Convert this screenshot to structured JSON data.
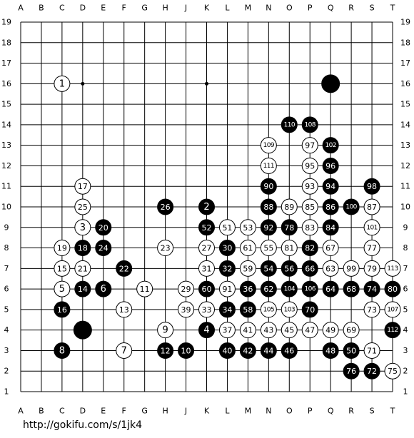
{
  "board": {
    "columns": [
      "A",
      "B",
      "C",
      "D",
      "E",
      "F",
      "G",
      "H",
      "J",
      "K",
      "L",
      "M",
      "N",
      "O",
      "P",
      "Q",
      "R",
      "S",
      "T"
    ],
    "rows": [
      19,
      18,
      17,
      16,
      15,
      14,
      13,
      12,
      11,
      10,
      9,
      8,
      7,
      6,
      5,
      4,
      3,
      2,
      1
    ],
    "stones": [
      {
        "col": "C",
        "row": 16,
        "color": "white",
        "label": "1"
      },
      {
        "col": "Q",
        "row": 16,
        "color": "black"
      },
      {
        "col": "O",
        "row": 14,
        "color": "black",
        "label": "110"
      },
      {
        "col": "P",
        "row": 14,
        "color": "black",
        "label": "108"
      },
      {
        "col": "N",
        "row": 13,
        "color": "white",
        "label": "109"
      },
      {
        "col": "P",
        "row": 13,
        "color": "white",
        "label": "97"
      },
      {
        "col": "Q",
        "row": 13,
        "color": "black",
        "label": "102"
      },
      {
        "col": "N",
        "row": 12,
        "color": "white",
        "label": "111"
      },
      {
        "col": "P",
        "row": 12,
        "color": "white",
        "label": "95"
      },
      {
        "col": "Q",
        "row": 12,
        "color": "black",
        "label": "96"
      },
      {
        "col": "D",
        "row": 11,
        "color": "white",
        "label": "17"
      },
      {
        "col": "N",
        "row": 11,
        "color": "black",
        "label": "90"
      },
      {
        "col": "P",
        "row": 11,
        "color": "white",
        "label": "93"
      },
      {
        "col": "Q",
        "row": 11,
        "color": "black",
        "label": "94"
      },
      {
        "col": "S",
        "row": 11,
        "color": "black",
        "label": "98"
      },
      {
        "col": "D",
        "row": 10,
        "color": "white",
        "label": "25"
      },
      {
        "col": "H",
        "row": 10,
        "color": "black",
        "label": "26"
      },
      {
        "col": "K",
        "row": 10,
        "color": "black",
        "label": "2"
      },
      {
        "col": "N",
        "row": 10,
        "color": "black",
        "label": "88"
      },
      {
        "col": "O",
        "row": 10,
        "color": "white",
        "label": "89"
      },
      {
        "col": "P",
        "row": 10,
        "color": "white",
        "label": "85"
      },
      {
        "col": "Q",
        "row": 10,
        "color": "black",
        "label": "86"
      },
      {
        "col": "R",
        "row": 10,
        "color": "black",
        "label": "100"
      },
      {
        "col": "S",
        "row": 10,
        "color": "white",
        "label": "87"
      },
      {
        "col": "D",
        "row": 9,
        "color": "white",
        "label": "3"
      },
      {
        "col": "E",
        "row": 9,
        "color": "black",
        "label": "20"
      },
      {
        "col": "K",
        "row": 9,
        "color": "black",
        "label": "52"
      },
      {
        "col": "L",
        "row": 9,
        "color": "white",
        "label": "51"
      },
      {
        "col": "M",
        "row": 9,
        "color": "white",
        "label": "53"
      },
      {
        "col": "N",
        "row": 9,
        "color": "black",
        "label": "92"
      },
      {
        "col": "O",
        "row": 9,
        "color": "black",
        "label": "78"
      },
      {
        "col": "P",
        "row": 9,
        "color": "white",
        "label": "83"
      },
      {
        "col": "Q",
        "row": 9,
        "color": "black",
        "label": "84"
      },
      {
        "col": "S",
        "row": 9,
        "color": "white",
        "label": "101"
      },
      {
        "col": "C",
        "row": 8,
        "color": "white",
        "label": "19"
      },
      {
        "col": "D",
        "row": 8,
        "color": "black",
        "label": "18"
      },
      {
        "col": "E",
        "row": 8,
        "color": "black",
        "label": "24"
      },
      {
        "col": "H",
        "row": 8,
        "color": "white",
        "label": "23"
      },
      {
        "col": "K",
        "row": 8,
        "color": "white",
        "label": "27"
      },
      {
        "col": "L",
        "row": 8,
        "color": "black",
        "label": "30"
      },
      {
        "col": "M",
        "row": 8,
        "color": "white",
        "label": "61"
      },
      {
        "col": "N",
        "row": 8,
        "color": "white",
        "label": "55"
      },
      {
        "col": "O",
        "row": 8,
        "color": "white",
        "label": "81"
      },
      {
        "col": "P",
        "row": 8,
        "color": "black",
        "label": "82"
      },
      {
        "col": "Q",
        "row": 8,
        "color": "white",
        "label": "67"
      },
      {
        "col": "S",
        "row": 8,
        "color": "white",
        "label": "77"
      },
      {
        "col": "C",
        "row": 7,
        "color": "white",
        "label": "15"
      },
      {
        "col": "D",
        "row": 7,
        "color": "white",
        "label": "21"
      },
      {
        "col": "F",
        "row": 7,
        "color": "black",
        "label": "22"
      },
      {
        "col": "K",
        "row": 7,
        "color": "white",
        "label": "31"
      },
      {
        "col": "L",
        "row": 7,
        "color": "black",
        "label": "32"
      },
      {
        "col": "M",
        "row": 7,
        "color": "white",
        "label": "59"
      },
      {
        "col": "N",
        "row": 7,
        "color": "black",
        "label": "54"
      },
      {
        "col": "O",
        "row": 7,
        "color": "black",
        "label": "56"
      },
      {
        "col": "P",
        "row": 7,
        "color": "black",
        "label": "66"
      },
      {
        "col": "Q",
        "row": 7,
        "color": "white",
        "label": "63"
      },
      {
        "col": "R",
        "row": 7,
        "color": "white",
        "label": "99"
      },
      {
        "col": "S",
        "row": 7,
        "color": "white",
        "label": "79"
      },
      {
        "col": "T",
        "row": 7,
        "color": "white",
        "label": "113"
      },
      {
        "col": "C",
        "row": 6,
        "color": "white",
        "label": "5"
      },
      {
        "col": "D",
        "row": 6,
        "color": "black",
        "label": "14"
      },
      {
        "col": "E",
        "row": 6,
        "color": "black",
        "label": "6"
      },
      {
        "col": "G",
        "row": 6,
        "color": "white",
        "label": "11"
      },
      {
        "col": "J",
        "row": 6,
        "color": "white",
        "label": "29"
      },
      {
        "col": "K",
        "row": 6,
        "color": "black",
        "label": "60"
      },
      {
        "col": "L",
        "row": 6,
        "color": "white",
        "label": "91"
      },
      {
        "col": "M",
        "row": 6,
        "color": "black",
        "label": "36"
      },
      {
        "col": "N",
        "row": 6,
        "color": "black",
        "label": "62"
      },
      {
        "col": "O",
        "row": 6,
        "color": "black",
        "label": "104"
      },
      {
        "col": "P",
        "row": 6,
        "color": "black",
        "label": "106"
      },
      {
        "col": "Q",
        "row": 6,
        "color": "black",
        "label": "64"
      },
      {
        "col": "R",
        "row": 6,
        "color": "black",
        "label": "68"
      },
      {
        "col": "S",
        "row": 6,
        "color": "black",
        "label": "74"
      },
      {
        "col": "T",
        "row": 6,
        "color": "black",
        "label": "80"
      },
      {
        "col": "C",
        "row": 5,
        "color": "black",
        "label": "16"
      },
      {
        "col": "F",
        "row": 5,
        "color": "white",
        "label": "13"
      },
      {
        "col": "J",
        "row": 5,
        "color": "white",
        "label": "39"
      },
      {
        "col": "K",
        "row": 5,
        "color": "white",
        "label": "33"
      },
      {
        "col": "L",
        "row": 5,
        "color": "black",
        "label": "34"
      },
      {
        "col": "M",
        "row": 5,
        "color": "black",
        "label": "58"
      },
      {
        "col": "N",
        "row": 5,
        "color": "white",
        "label": "105"
      },
      {
        "col": "O",
        "row": 5,
        "color": "white",
        "label": "103"
      },
      {
        "col": "P",
        "row": 5,
        "color": "black",
        "label": "70"
      },
      {
        "col": "S",
        "row": 5,
        "color": "white",
        "label": "73"
      },
      {
        "col": "T",
        "row": 5,
        "color": "white",
        "label": "107"
      },
      {
        "col": "D",
        "row": 4,
        "color": "black"
      },
      {
        "col": "H",
        "row": 4,
        "color": "white",
        "label": "9"
      },
      {
        "col": "K",
        "row": 4,
        "color": "black",
        "label": "4"
      },
      {
        "col": "L",
        "row": 4,
        "color": "white",
        "label": "37"
      },
      {
        "col": "M",
        "row": 4,
        "color": "white",
        "label": "41"
      },
      {
        "col": "N",
        "row": 4,
        "color": "white",
        "label": "43"
      },
      {
        "col": "O",
        "row": 4,
        "color": "white",
        "label": "45"
      },
      {
        "col": "P",
        "row": 4,
        "color": "white",
        "label": "47"
      },
      {
        "col": "Q",
        "row": 4,
        "color": "white",
        "label": "49"
      },
      {
        "col": "R",
        "row": 4,
        "color": "white",
        "label": "69"
      },
      {
        "col": "T",
        "row": 4,
        "color": "black",
        "label": "112"
      },
      {
        "col": "C",
        "row": 3,
        "color": "black",
        "label": "8"
      },
      {
        "col": "F",
        "row": 3,
        "color": "white",
        "label": "7"
      },
      {
        "col": "H",
        "row": 3,
        "color": "black",
        "label": "12"
      },
      {
        "col": "J",
        "row": 3,
        "color": "black",
        "label": "10"
      },
      {
        "col": "L",
        "row": 3,
        "color": "black",
        "label": "40"
      },
      {
        "col": "M",
        "row": 3,
        "color": "black",
        "label": "42"
      },
      {
        "col": "N",
        "row": 3,
        "color": "black",
        "label": "44"
      },
      {
        "col": "O",
        "row": 3,
        "color": "black",
        "label": "46"
      },
      {
        "col": "Q",
        "row": 3,
        "color": "black",
        "label": "48"
      },
      {
        "col": "R",
        "row": 3,
        "color": "black",
        "label": "50"
      },
      {
        "col": "S",
        "row": 3,
        "color": "white",
        "label": "71"
      },
      {
        "col": "R",
        "row": 2,
        "color": "black",
        "label": "76"
      },
      {
        "col": "S",
        "row": 2,
        "color": "black",
        "label": "72"
      },
      {
        "col": "T",
        "row": 2,
        "color": "white",
        "label": "75"
      }
    ]
  },
  "footer": {
    "url": "http://gokifu.com/s/1jk4"
  }
}
